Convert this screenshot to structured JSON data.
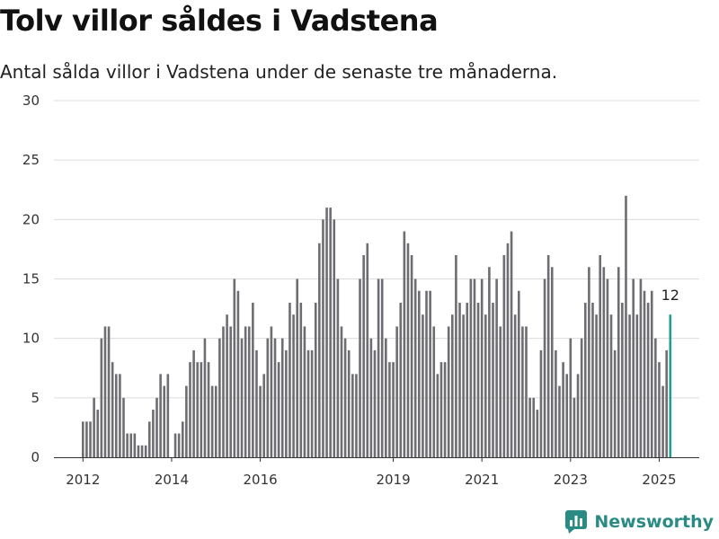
{
  "chart_data": {
    "type": "bar",
    "title": "Tolv villor såldes i Vadstena",
    "subtitle": "Antal sålda villor i Vadstena under de senaste tre månaderna.",
    "ylim": [
      0,
      30
    ],
    "y_ticks": [
      0,
      5,
      10,
      15,
      20,
      25,
      30
    ],
    "x_tick_labels": [
      "2012",
      "2014",
      "2016",
      "2019",
      "2021",
      "2023",
      "2025"
    ],
    "grid": true,
    "bar_color": "#6e6d72",
    "highlight_color": "#1f9e91",
    "highlight_label": "12",
    "values": [
      3,
      3,
      3,
      5,
      4,
      10,
      11,
      11,
      8,
      7,
      7,
      5,
      2,
      2,
      2,
      1,
      1,
      1,
      3,
      4,
      5,
      7,
      6,
      7,
      0,
      2,
      2,
      3,
      6,
      8,
      9,
      8,
      8,
      10,
      8,
      6,
      6,
      10,
      11,
      12,
      11,
      15,
      14,
      10,
      11,
      11,
      13,
      9,
      6,
      7,
      10,
      11,
      10,
      8,
      10,
      9,
      13,
      12,
      15,
      13,
      11,
      9,
      9,
      13,
      18,
      20,
      21,
      21,
      20,
      15,
      11,
      10,
      9,
      7,
      7,
      15,
      17,
      18,
      10,
      9,
      15,
      15,
      10,
      8,
      8,
      11,
      13,
      19,
      18,
      17,
      15,
      14,
      12,
      14,
      14,
      11,
      7,
      8,
      8,
      11,
      12,
      17,
      13,
      12,
      13,
      15,
      15,
      13,
      15,
      12,
      16,
      13,
      15,
      11,
      17,
      18,
      19,
      12,
      14,
      11,
      11,
      5,
      5,
      4,
      9,
      15,
      17,
      16,
      9,
      6,
      8,
      7,
      10,
      5,
      7,
      10,
      13,
      16,
      13,
      12,
      17,
      16,
      15,
      12,
      9,
      16,
      13,
      22,
      12,
      15,
      12,
      15,
      14,
      13,
      14,
      10,
      8,
      6,
      9,
      12
    ]
  },
  "brand": {
    "name": "Newsworthy"
  }
}
